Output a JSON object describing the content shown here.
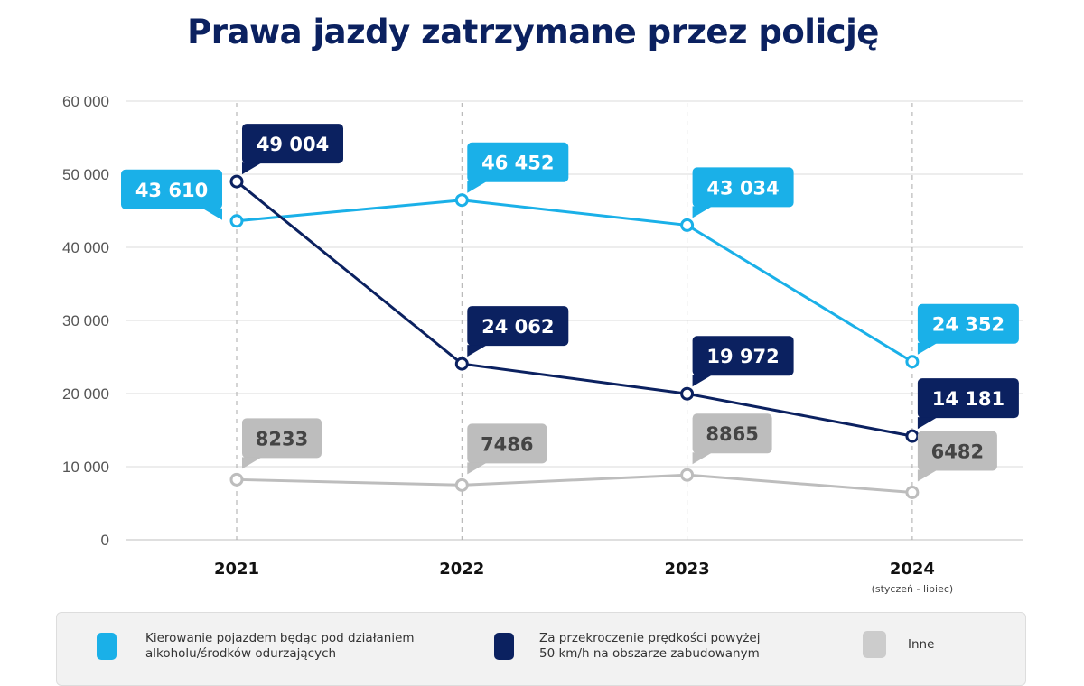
{
  "chart_data": {
    "type": "line",
    "title": "Prawa jazdy zatrzymane przez policję",
    "categories": [
      "2021",
      "2022",
      "2023",
      "2024"
    ],
    "category_notes": [
      "",
      "",
      "",
      "(styczeń - lipiec)"
    ],
    "ylim": [
      0,
      60000
    ],
    "yticks": [
      "0",
      "10 000",
      "20 000",
      "30 000",
      "40 000",
      "50 000",
      "60 000"
    ],
    "grid": true,
    "legend_position": "bottom",
    "series": [
      {
        "name": "Kierowanie pojazdem będąc pod działaniem alkoholu/środków odurzających",
        "color": "#1ab0e8",
        "values": [
          43610,
          46452,
          43034,
          24352
        ],
        "labels": [
          "43 610",
          "46 452",
          "43 034",
          "24 352"
        ]
      },
      {
        "name": "Za przekroczenie prędkości powyżej 50 km/h na obszarze zabudowanym",
        "color": "#0b2160",
        "values": [
          49004,
          24062,
          19972,
          14181
        ],
        "labels": [
          "49 004",
          "24 062",
          "19 972",
          "14 181"
        ]
      },
      {
        "name": "Inne",
        "color": "#bdbdbd",
        "values": [
          8233,
          7486,
          8865,
          6482
        ],
        "labels": [
          "8233",
          "7486",
          "8865",
          "6482"
        ]
      }
    ]
  },
  "legend": {
    "items": [
      {
        "line1": "Kierowanie pojazdem będąc pod działaniem",
        "line2": "alkoholu/środków odurzających",
        "color": "#1ab0e8"
      },
      {
        "line1": "Za przekroczenie prędkości powyżej",
        "line2": "50 km/h na obszarze zabudowanym",
        "color": "#0b2160"
      },
      {
        "line1": "Inne",
        "line2": "",
        "color": "#cccccc"
      }
    ]
  }
}
